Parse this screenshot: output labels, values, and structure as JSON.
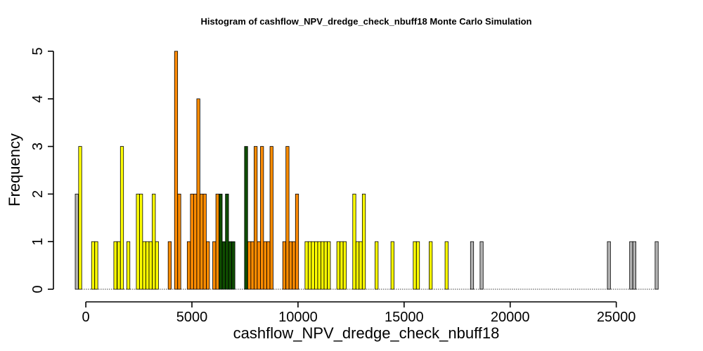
{
  "chart_data": {
    "type": "bar",
    "title": "Histogram of  cashflow_NPV_dredge_check_nbuff18  Monte Carlo Simulation",
    "xlabel": "cashflow_NPV_dredge_check_nbuff18",
    "ylabel": "Frequency",
    "xlim": [
      -500,
      27000
    ],
    "ylim": [
      0,
      5
    ],
    "xticks": [
      0,
      5000,
      10000,
      15000,
      20000,
      25000
    ],
    "yticks": [
      0,
      1,
      2,
      3,
      4,
      5
    ],
    "bin_width": 146,
    "colors": {
      "gray": "#b3b3b3",
      "yellow": "#ffff00",
      "orange": "#ff8c00",
      "green": "#0f4d00"
    },
    "bins": [
      {
        "x": -500,
        "count": 2,
        "color": "gray"
      },
      {
        "x": -340,
        "count": 3,
        "color": "yellow"
      },
      {
        "x": 270,
        "count": 1,
        "color": "yellow"
      },
      {
        "x": 420,
        "count": 1,
        "color": "yellow"
      },
      {
        "x": 1320,
        "count": 1,
        "color": "yellow"
      },
      {
        "x": 1480,
        "count": 1,
        "color": "yellow"
      },
      {
        "x": 1630,
        "count": 3,
        "color": "yellow"
      },
      {
        "x": 1930,
        "count": 1,
        "color": "yellow"
      },
      {
        "x": 2380,
        "count": 2,
        "color": "yellow"
      },
      {
        "x": 2530,
        "count": 2,
        "color": "yellow"
      },
      {
        "x": 2680,
        "count": 1,
        "color": "yellow"
      },
      {
        "x": 2830,
        "count": 1,
        "color": "yellow"
      },
      {
        "x": 2980,
        "count": 1,
        "color": "yellow"
      },
      {
        "x": 3130,
        "count": 2,
        "color": "yellow"
      },
      {
        "x": 3280,
        "count": 1,
        "color": "yellow"
      },
      {
        "x": 3880,
        "count": 1,
        "color": "orange"
      },
      {
        "x": 4180,
        "count": 5,
        "color": "orange"
      },
      {
        "x": 4330,
        "count": 2,
        "color": "orange"
      },
      {
        "x": 4780,
        "count": 1,
        "color": "orange"
      },
      {
        "x": 4930,
        "count": 2,
        "color": "orange"
      },
      {
        "x": 5080,
        "count": 2,
        "color": "orange"
      },
      {
        "x": 5230,
        "count": 4,
        "color": "orange"
      },
      {
        "x": 5380,
        "count": 2,
        "color": "orange"
      },
      {
        "x": 5530,
        "count": 2,
        "color": "orange"
      },
      {
        "x": 5680,
        "count": 1,
        "color": "orange"
      },
      {
        "x": 5980,
        "count": 1,
        "color": "orange"
      },
      {
        "x": 6130,
        "count": 2,
        "color": "orange"
      },
      {
        "x": 6280,
        "count": 2,
        "color": "green"
      },
      {
        "x": 6430,
        "count": 1,
        "color": "green"
      },
      {
        "x": 6580,
        "count": 2,
        "color": "green"
      },
      {
        "x": 6730,
        "count": 1,
        "color": "green"
      },
      {
        "x": 6880,
        "count": 1,
        "color": "green"
      },
      {
        "x": 7480,
        "count": 3,
        "color": "green"
      },
      {
        "x": 7630,
        "count": 1,
        "color": "orange"
      },
      {
        "x": 7780,
        "count": 1,
        "color": "orange"
      },
      {
        "x": 7930,
        "count": 3,
        "color": "orange"
      },
      {
        "x": 8080,
        "count": 1,
        "color": "orange"
      },
      {
        "x": 8230,
        "count": 3,
        "color": "orange"
      },
      {
        "x": 8380,
        "count": 1,
        "color": "orange"
      },
      {
        "x": 8530,
        "count": 1,
        "color": "orange"
      },
      {
        "x": 8680,
        "count": 3,
        "color": "orange"
      },
      {
        "x": 9280,
        "count": 1,
        "color": "orange"
      },
      {
        "x": 9430,
        "count": 3,
        "color": "orange"
      },
      {
        "x": 9580,
        "count": 1,
        "color": "orange"
      },
      {
        "x": 9730,
        "count": 1,
        "color": "orange"
      },
      {
        "x": 9880,
        "count": 2,
        "color": "orange"
      },
      {
        "x": 10330,
        "count": 1,
        "color": "yellow"
      },
      {
        "x": 10480,
        "count": 1,
        "color": "yellow"
      },
      {
        "x": 10630,
        "count": 1,
        "color": "yellow"
      },
      {
        "x": 10780,
        "count": 1,
        "color": "yellow"
      },
      {
        "x": 10930,
        "count": 1,
        "color": "yellow"
      },
      {
        "x": 11080,
        "count": 1,
        "color": "yellow"
      },
      {
        "x": 11230,
        "count": 1,
        "color": "yellow"
      },
      {
        "x": 11380,
        "count": 1,
        "color": "yellow"
      },
      {
        "x": 11830,
        "count": 1,
        "color": "yellow"
      },
      {
        "x": 11980,
        "count": 1,
        "color": "yellow"
      },
      {
        "x": 12130,
        "count": 1,
        "color": "yellow"
      },
      {
        "x": 12580,
        "count": 2,
        "color": "yellow"
      },
      {
        "x": 12730,
        "count": 1,
        "color": "yellow"
      },
      {
        "x": 12880,
        "count": 1,
        "color": "yellow"
      },
      {
        "x": 13030,
        "count": 2,
        "color": "yellow"
      },
      {
        "x": 13630,
        "count": 1,
        "color": "yellow"
      },
      {
        "x": 14380,
        "count": 1,
        "color": "yellow"
      },
      {
        "x": 15430,
        "count": 1,
        "color": "yellow"
      },
      {
        "x": 15580,
        "count": 1,
        "color": "yellow"
      },
      {
        "x": 16180,
        "count": 1,
        "color": "yellow"
      },
      {
        "x": 16930,
        "count": 1,
        "color": "yellow"
      },
      {
        "x": 18130,
        "count": 1,
        "color": "gray"
      },
      {
        "x": 18580,
        "count": 1,
        "color": "gray"
      },
      {
        "x": 24580,
        "count": 1,
        "color": "gray"
      },
      {
        "x": 25630,
        "count": 1,
        "color": "gray"
      },
      {
        "x": 25780,
        "count": 1,
        "color": "gray"
      },
      {
        "x": 26830,
        "count": 1,
        "color": "gray"
      }
    ]
  }
}
